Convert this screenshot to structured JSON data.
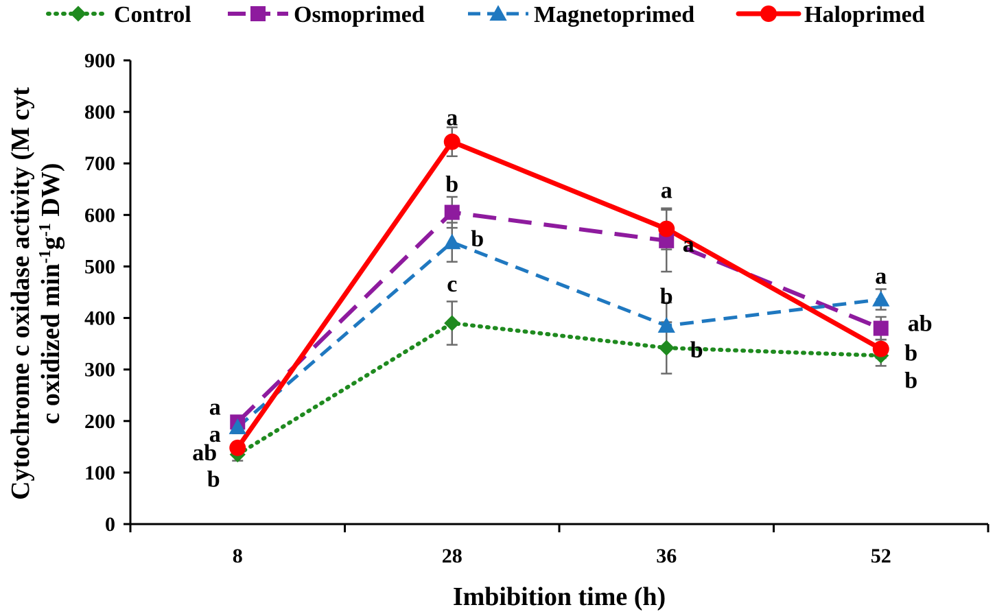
{
  "chart_data": {
    "type": "line",
    "xlabel": "Imbibition time (h)",
    "ylabel_line1": "Cytochrome c oxidase activity (M cyt",
    "ylabel_line2_a": "c oxidized min",
    "ylabel_line2_sup1": "-1",
    "ylabel_line2_b": "g",
    "ylabel_line2_sup2": "-1",
    "ylabel_line2_c": " DW)",
    "categories": [
      "8",
      "28",
      "36",
      "52"
    ],
    "ylim": [
      0,
      900
    ],
    "yticks": [
      "0",
      "100",
      "200",
      "300",
      "400",
      "500",
      "600",
      "700",
      "800",
      "900"
    ],
    "series": [
      {
        "name": "Control",
        "color": "#1f8a1f",
        "style": "dotted",
        "marker": "diamond",
        "values": [
          135,
          390,
          342,
          327
        ],
        "errors": [
          12,
          42,
          50,
          20
        ],
        "sig": [
          "b",
          "c",
          "b",
          "b"
        ]
      },
      {
        "name": "Osmoprimed",
        "color": "#8e1b9e",
        "style": "longdash",
        "marker": "square",
        "values": [
          198,
          605,
          550,
          380
        ],
        "errors": [
          12,
          30,
          60,
          22
        ],
        "sig": [
          "a",
          "b",
          "a",
          "ab"
        ]
      },
      {
        "name": "Magnetoprimed",
        "color": "#1f78c0",
        "style": "dash",
        "marker": "triangle",
        "values": [
          188,
          547,
          385,
          436
        ],
        "errors": [
          12,
          38,
          45,
          20
        ],
        "sig": [
          "a",
          "b",
          "b",
          "a"
        ]
      },
      {
        "name": "Haloprimed",
        "color": "#ff0000",
        "style": "solid",
        "marker": "circle",
        "values": [
          148,
          742,
          573,
          340
        ],
        "errors": [
          10,
          28,
          40,
          18
        ],
        "sig": [
          "ab",
          "a",
          "a",
          "b"
        ]
      }
    ]
  }
}
